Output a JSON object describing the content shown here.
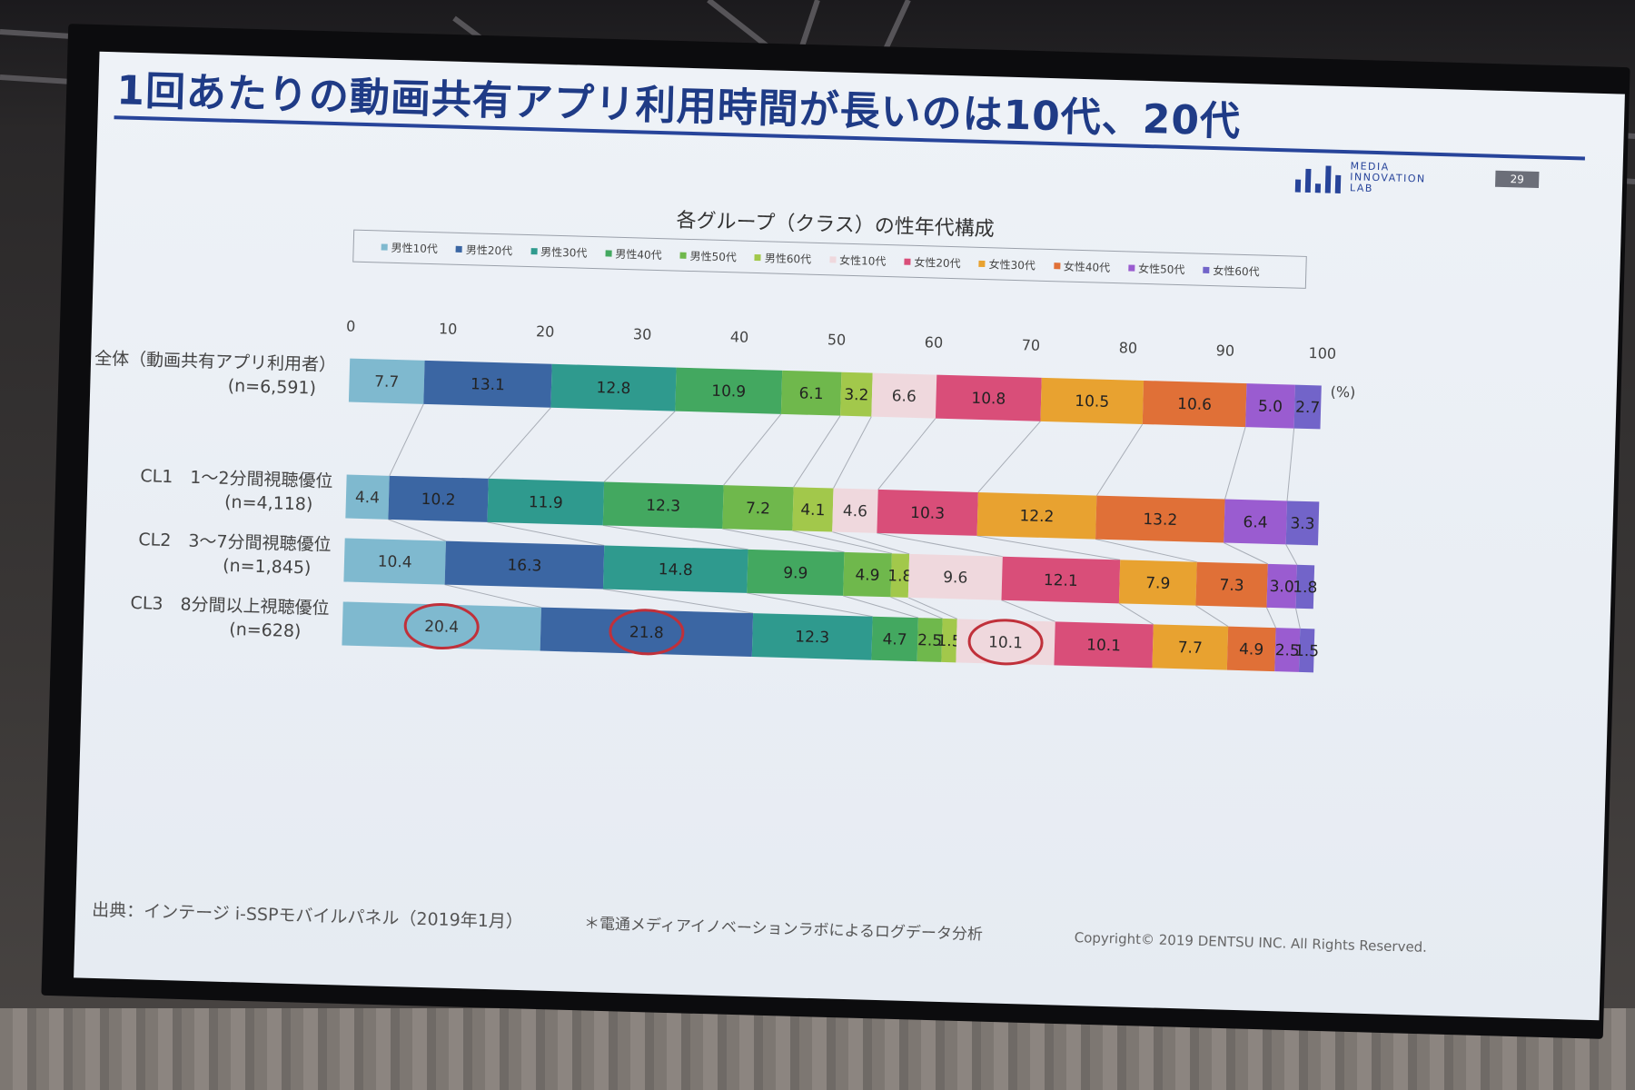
{
  "slide": {
    "title": "1回あたりの動画共有アプリ利用時間が長いのは10代、20代",
    "logo_text": [
      "MEDIA",
      "INNOVATION",
      "LAB"
    ],
    "page_number": "29",
    "source": "出典：インテージ i-SSPモバイルパネル（2019年1月）",
    "note": "＊電通メディアイノベーションラボによるログデータ分析",
    "copyright": "Copyright© 2019 DENTSU INC. All Rights Reserved."
  },
  "chart_data": {
    "type": "bar",
    "orientation": "horizontal",
    "stacked": "percent",
    "title": "各グループ（クラス）の性年代構成",
    "unit": "(%)",
    "xlim": [
      0,
      100
    ],
    "xticks": [
      "0",
      "10",
      "20",
      "30",
      "40",
      "50",
      "60",
      "70",
      "80",
      "90",
      "100"
    ],
    "grid": false,
    "legend_position": "top",
    "series_names": [
      "男性10代",
      "男性20代",
      "男性30代",
      "男性40代",
      "男性50代",
      "男性60代",
      "女性10代",
      "女性20代",
      "女性30代",
      "女性40代",
      "女性50代",
      "女性60代"
    ],
    "series_colors": [
      "#7fb9cf",
      "#3b66a3",
      "#2f9a8e",
      "#43a860",
      "#6fb84c",
      "#a2c84b",
      "#efd8dd",
      "#d94e79",
      "#e8a230",
      "#e07037",
      "#9a5cd0",
      "#7264c9"
    ],
    "categories": [
      {
        "label": "全体（動画共有アプリ利用者）",
        "n": "(n=6,591)"
      },
      {
        "label": "CL1　1〜2分間視聴優位",
        "n": "(n=4,118)"
      },
      {
        "label": "CL2　3〜7分間視聴優位",
        "n": "(n=1,845)"
      },
      {
        "label": "CL3　8分間以上視聴優位",
        "n": "(n=628)"
      }
    ],
    "values": [
      [
        7.7,
        13.1,
        12.8,
        10.9,
        6.1,
        3.2,
        6.6,
        10.8,
        10.5,
        10.6,
        5.0,
        2.7
      ],
      [
        4.4,
        10.2,
        11.9,
        12.3,
        7.2,
        4.1,
        4.6,
        10.3,
        12.2,
        13.2,
        6.4,
        3.3
      ],
      [
        10.4,
        16.3,
        14.8,
        9.9,
        4.9,
        1.8,
        9.6,
        12.1,
        7.9,
        7.3,
        3.0,
        1.8
      ],
      [
        20.4,
        21.8,
        12.3,
        4.7,
        2.5,
        1.5,
        10.1,
        10.1,
        7.7,
        4.9,
        2.5,
        1.5
      ]
    ],
    "highlighted": [
      [
        3,
        0
      ],
      [
        3,
        1
      ],
      [
        3,
        6
      ]
    ]
  }
}
